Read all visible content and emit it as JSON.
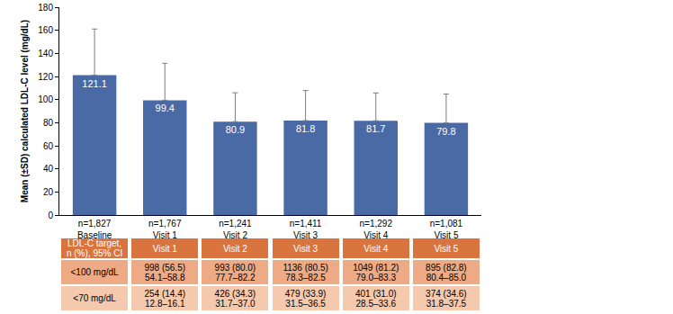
{
  "chart_data": {
    "type": "bar",
    "y_label": "Mean (±SD) calculated LDL-C level (mg/dL)",
    "categories": [
      "n=1,827\nBaseline",
      "n=1,767\nVisit 1",
      "n=1,241\nVisit 2",
      "n=1,411\nVisit 3",
      "n=1,292\nVisit 4",
      "n=1,081\nVisit 5"
    ],
    "values": [
      121.1,
      99.4,
      80.9,
      81.8,
      81.7,
      79.8
    ],
    "sd": [
      40,
      32,
      25,
      26,
      24,
      25
    ],
    "color": "#4a6aa6",
    "data_labels": true,
    "ylim": [
      0,
      180
    ],
    "yticks": [
      0,
      20,
      40,
      60,
      80,
      100,
      120,
      140,
      160,
      180
    ],
    "grid": false
  },
  "table": {
    "header": [
      "LDL-C target,\nn (%), 95% CI",
      "Visit 1",
      "Visit 2",
      "Visit 3",
      "Visit 4",
      "Visit 5"
    ],
    "rows": [
      [
        "<100 mg/dL",
        "998 (56.5)\n54.1–58.8",
        "993 (80.0)\n77.7–82.2",
        "1136 (80.5)\n78.3–82.5",
        "1049 (81.2)\n79.0–83.3",
        "895 (82.8)\n80.4–85.0"
      ],
      [
        "<70 mg/dL",
        "254 (14.4)\n12.8–16.1",
        "426 (34.3)\n31.7–37.0",
        "479 (33.9)\n31.5–36.5",
        "401 (31.0)\n28.5–33.6",
        "374 (34.6)\n31.8–37.5"
      ]
    ]
  }
}
